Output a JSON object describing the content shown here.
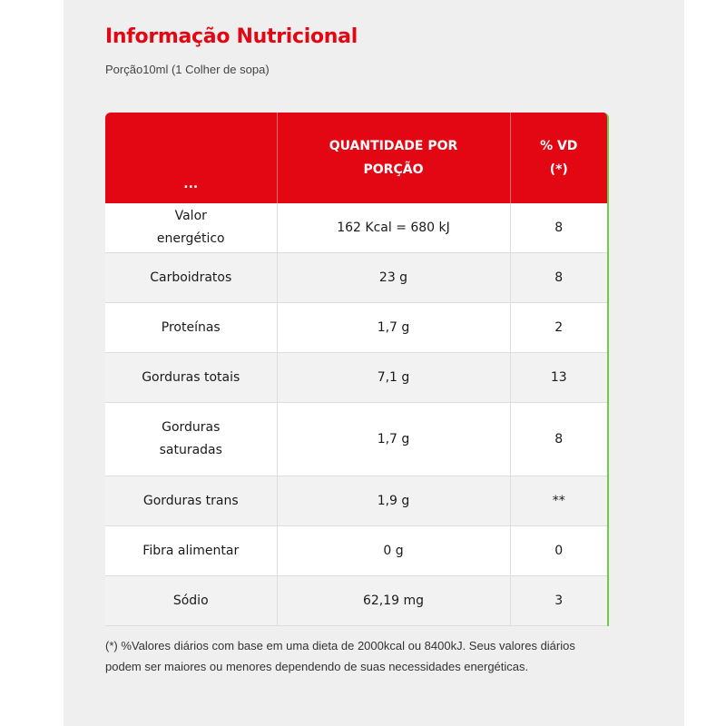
{
  "title": "Informação Nutricional",
  "portion": "Porção10ml (1 Colher de sopa)",
  "table": {
    "headers": [
      {
        "line1": "...",
        "line2": ""
      },
      {
        "line1": "QUANTIDADE POR",
        "line2": "PORÇÃO"
      },
      {
        "line1": "% VD",
        "line2": "(*)"
      }
    ],
    "rows": [
      {
        "name": "Valor energético",
        "amount": "162 Kcal = 680 kJ",
        "vd": "8"
      },
      {
        "name": "Carboidratos",
        "amount": "23 g",
        "vd": "8"
      },
      {
        "name": "Proteínas",
        "amount": "1,7 g",
        "vd": "2"
      },
      {
        "name": "Gorduras totais",
        "amount": "7,1 g",
        "vd": "13"
      },
      {
        "name": "Gorduras saturadas",
        "amount": "1,7 g",
        "vd": "8"
      },
      {
        "name": "Gorduras trans",
        "amount": "1,9 g",
        "vd": "**"
      },
      {
        "name": "Fibra alimentar",
        "amount": "0 g",
        "vd": "0"
      },
      {
        "name": "Sódio",
        "amount": "62,19 mg",
        "vd": "3"
      }
    ]
  },
  "footnote": "(*) %Valores diários com base em uma dieta de 2000kcal ou 8400kJ. Seus valores diários podem ser maiores ou menores dependendo de suas necessidades energéticas.",
  "colors": {
    "accent": "#e30613",
    "edge": "#6ccf3f",
    "background": "#efefef"
  }
}
